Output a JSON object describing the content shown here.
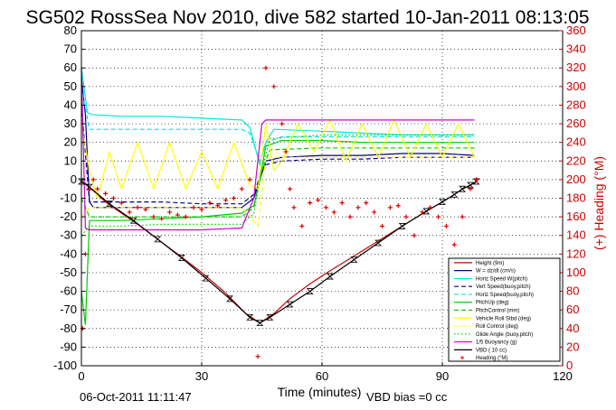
{
  "chart_data": {
    "type": "line",
    "title": "SG502 RossSea Nov 2010, dive 582 started 10-Jan-2011 08:13:05",
    "xlabel": "Time (minutes)",
    "ylabel_right": "(+) Heading (°M)",
    "xlim": [
      0,
      120
    ],
    "ylim": [
      -100,
      80
    ],
    "ylim_right": [
      0,
      360
    ],
    "x_ticks": [
      0,
      30,
      60,
      90,
      120
    ],
    "y_ticks": [
      80,
      70,
      60,
      50,
      40,
      30,
      20,
      10,
      0,
      -10,
      -20,
      -30,
      -40,
      -50,
      -60,
      -70,
      -80,
      -90,
      -100
    ],
    "y_right_ticks": [
      360,
      340,
      320,
      300,
      280,
      260,
      240,
      220,
      200,
      180,
      160,
      140,
      120,
      100,
      80,
      60,
      40,
      20,
      0
    ],
    "grid": true,
    "legend_position": "bottom-right",
    "footer_date": "06-Oct-2011 11:11:47",
    "footer_vbd": "VBD bias =0 cc",
    "colors": {
      "depth": "#cc0000",
      "w": "#00008b",
      "hspeed": "#00e5e5",
      "green": "#00cc00",
      "yellow": "#ffff00",
      "magenta": "#cc00cc",
      "heading": "#dd0000"
    },
    "series": [
      {
        "name": "Height (9m)",
        "color": "#cc0000",
        "style": "solid",
        "x": [
          0,
          1,
          3,
          6,
          10,
          14,
          19,
          24,
          30,
          36,
          41,
          44.5,
          48,
          52,
          57,
          62,
          68,
          74,
          80,
          86,
          90,
          93,
          95,
          97,
          98.5
        ],
        "y": [
          -1,
          -2,
          -6,
          -12,
          -18,
          -24,
          -32,
          -40,
          -50,
          -61,
          -72,
          -77,
          -72,
          -64,
          -56,
          -49,
          -41,
          -33,
          -25,
          -17,
          -12,
          -8,
          -5,
          -3,
          -1
        ]
      },
      {
        "name": "W = dz/dt (cm/s)",
        "color": "#00008b",
        "style": "solid",
        "x": [
          0,
          1,
          2,
          3,
          10,
          20,
          30,
          40,
          43,
          44.5,
          46,
          50,
          60,
          70,
          80,
          90,
          98
        ],
        "y": [
          55,
          35,
          -12,
          -15,
          -15,
          -15,
          -15,
          -15,
          -10,
          0,
          10,
          12,
          13,
          13,
          14,
          14,
          13
        ]
      },
      {
        "name": "Horiz Speed W(pitch)",
        "color": "#00e5e5",
        "style": "solid",
        "x": [
          0,
          1.5,
          2.5,
          10,
          20,
          30,
          40,
          42,
          44.5,
          46,
          48,
          60,
          70,
          80,
          90,
          98
        ],
        "y": [
          60,
          36,
          35,
          34,
          34,
          33,
          32,
          28,
          8,
          20,
          27,
          26,
          25,
          24,
          24,
          24
        ]
      },
      {
        "name": "Vert Speed(buoy,pitch)",
        "color": "#00008b",
        "style": "dash",
        "x": [
          0,
          2,
          10,
          20,
          30,
          40,
          43,
          45,
          46,
          50,
          60,
          70,
          80,
          90,
          98
        ],
        "y": [
          40,
          -12,
          -12,
          -12,
          -13,
          -13,
          -8,
          5,
          8,
          10,
          11,
          11,
          12,
          12,
          12
        ]
      },
      {
        "name": "Horiz Speed(buoy,pitch)",
        "color": "#00e5e5",
        "style": "dash",
        "x": [
          0,
          2,
          10,
          20,
          30,
          40,
          42,
          44.5,
          46,
          50,
          60,
          70,
          80,
          90,
          98
        ],
        "y": [
          50,
          27,
          27,
          27,
          27,
          27,
          25,
          10,
          20,
          23,
          23,
          23,
          23,
          23,
          23
        ]
      },
      {
        "name": "PitchUp (deg)",
        "color": "#00cc00",
        "style": "solid",
        "x": [
          0,
          1,
          2,
          3,
          10,
          20,
          30,
          40,
          43,
          44.5,
          46,
          50,
          60,
          70,
          80,
          90,
          98
        ],
        "y": [
          -60,
          -78,
          -22,
          -22,
          -22,
          -21,
          -20,
          -18,
          -14,
          0,
          18,
          21,
          21,
          20,
          20,
          20,
          20
        ]
      },
      {
        "name": "PitchControl (mm)",
        "color": "#00cc00",
        "style": "dash",
        "x": [
          0,
          2,
          10,
          20,
          30,
          40,
          43,
          45,
          47,
          60,
          70,
          80,
          90,
          98
        ],
        "y": [
          -10,
          -20,
          -20,
          -20,
          -20,
          -20,
          -15,
          5,
          16,
          17,
          17,
          17,
          17,
          17
        ]
      },
      {
        "name": "Vehicle Roll Stbd (deg)",
        "color": "#ffff00",
        "style": "solid",
        "x": [
          0,
          2,
          4,
          7,
          10,
          14,
          18,
          22,
          26,
          30,
          34,
          38,
          42,
          44,
          46,
          48,
          50,
          54,
          58,
          62,
          66,
          70,
          74,
          78,
          82,
          86,
          90,
          94,
          98
        ],
        "y": [
          30,
          5,
          -10,
          15,
          -5,
          20,
          -5,
          20,
          -5,
          15,
          -5,
          20,
          -3,
          -5,
          30,
          5,
          10,
          30,
          15,
          32,
          10,
          30,
          12,
          32,
          12,
          30,
          12,
          30,
          12
        ]
      },
      {
        "name": "Roll Control (deg)",
        "color": "#ffff00",
        "style": "dash",
        "x": [
          0,
          2,
          20,
          40,
          44,
          46,
          60,
          80,
          98
        ],
        "y": [
          -20,
          -15,
          -15,
          -15,
          -25,
          12,
          12,
          12,
          12
        ]
      },
      {
        "name": "Glide Angle (buoy,pitch)",
        "color": "#00cc00",
        "style": "dot",
        "x": [
          0,
          2,
          10,
          20,
          30,
          40,
          43,
          45,
          47,
          60,
          80,
          98
        ],
        "y": [
          -30,
          -25,
          -25,
          -24,
          -24,
          -24,
          -18,
          5,
          22,
          24,
          24,
          24
        ]
      },
      {
        "name": "1/5 Buoyancy (g)",
        "color": "#cc00cc",
        "style": "solid",
        "x": [
          0,
          1,
          2,
          10,
          20,
          30,
          40,
          43,
          45,
          46,
          60,
          80,
          98
        ],
        "y": [
          60,
          -26,
          -27,
          -27,
          -27,
          -27,
          -26,
          -10,
          30,
          32,
          32,
          32,
          32
        ]
      },
      {
        "name": "VBD ( 10 cc)",
        "color": "#000000",
        "style": "solid-marker",
        "x": [
          0,
          2,
          7,
          13,
          19,
          25,
          31,
          37,
          42,
          44.5,
          47,
          52,
          57,
          62,
          68,
          74,
          80,
          86,
          90,
          93,
          95,
          97,
          98.5
        ],
        "y": [
          -1,
          -4,
          -13,
          -22,
          -32,
          -42,
          -53,
          -64,
          -74,
          -77,
          -74,
          -67,
          -60,
          -52,
          -43,
          -34,
          -25,
          -17,
          -12,
          -8,
          -5,
          -3,
          -1
        ]
      },
      {
        "name": "Heading (°M)",
        "color": "#dd0000",
        "style": "markers",
        "axis": "right",
        "x": [
          0.3,
          1,
          2,
          3,
          4,
          6,
          8,
          10,
          12,
          14,
          16,
          18,
          20,
          22,
          24,
          26,
          28,
          30,
          32,
          34,
          36,
          38,
          40,
          42,
          44,
          46,
          48,
          50,
          51,
          52,
          53,
          55,
          57,
          59,
          61,
          63,
          65,
          67,
          69,
          71,
          73,
          75,
          77,
          79,
          81,
          83,
          85,
          87,
          89,
          91,
          93,
          95,
          97,
          98.5
        ],
        "y": [
          40,
          120,
          190,
          200,
          190,
          185,
          180,
          175,
          165,
          170,
          168,
          160,
          158,
          165,
          162,
          160,
          170,
          168,
          175,
          172,
          178,
          180,
          190,
          200,
          10,
          320,
          300,
          260,
          230,
          190,
          170,
          150,
          175,
          178,
          170,
          165,
          175,
          160,
          170,
          175,
          165,
          150,
          170,
          172,
          160,
          140,
          165,
          170,
          160,
          150,
          130,
          160,
          190,
          200
        ]
      }
    ]
  }
}
